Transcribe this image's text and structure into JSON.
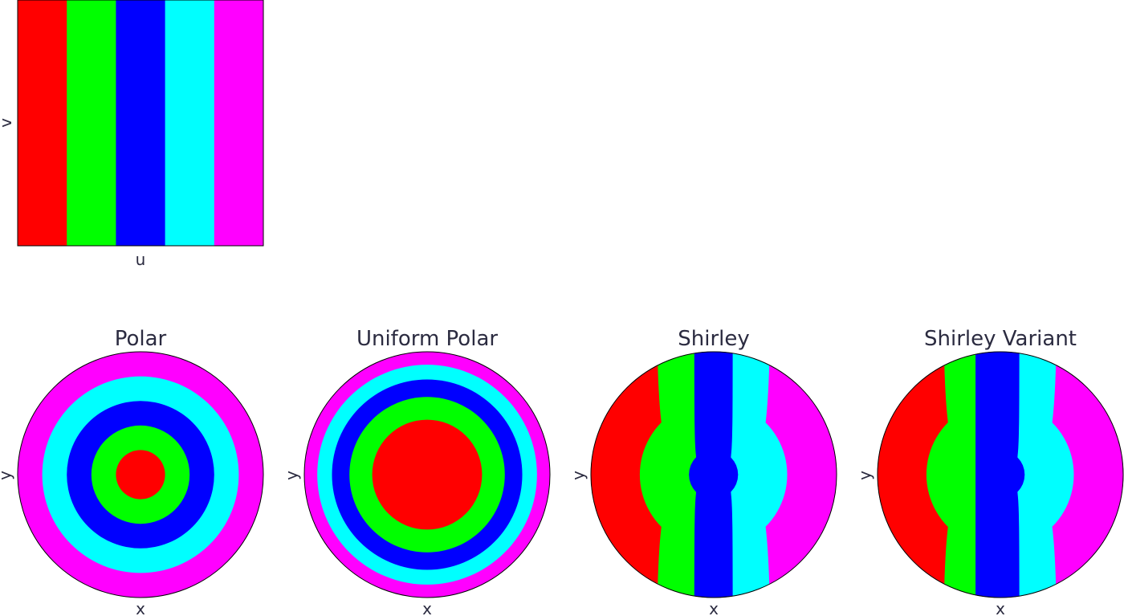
{
  "palette": [
    "#ff0000",
    "#00ff00",
    "#0000ff",
    "#00ffff",
    "#ff00ff"
  ],
  "source": {
    "xlabel": "u",
    "ylabel": "v"
  },
  "panels": [
    {
      "key": "polar",
      "title": "Polar",
      "xlabel": "x",
      "ylabel": "y"
    },
    {
      "key": "uniform_polar",
      "title": "Uniform Polar",
      "xlabel": "x",
      "ylabel": "y"
    },
    {
      "key": "shirley",
      "title": "Shirley",
      "xlabel": "x",
      "ylabel": "y"
    },
    {
      "key": "shirley_variant",
      "title": "Shirley Variant",
      "xlabel": "x",
      "ylabel": "y"
    }
  ]
}
